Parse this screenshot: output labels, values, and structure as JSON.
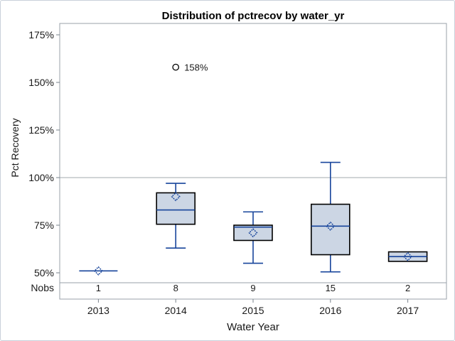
{
  "chart_data": {
    "type": "boxplot",
    "title": "Distribution of pctrecov by water_yr",
    "xlabel": "Water Year",
    "ylabel": "Pct Recovery",
    "nobs_label": "Nobs",
    "y_ticks": [
      175,
      150,
      125,
      100,
      75,
      50
    ],
    "y_tick_suffix": "%",
    "ylim": [
      45,
      181
    ],
    "reference_line": 100,
    "grid": "off",
    "legend": "none",
    "categories": [
      "2013",
      "2014",
      "2015",
      "2016",
      "2017"
    ],
    "nobs": [
      "1",
      "8",
      "9",
      "15",
      "2"
    ],
    "series": [
      {
        "category": "2013",
        "nobs": 1,
        "min": 51,
        "q1": 51,
        "median": 51,
        "q3": 51,
        "max": 51,
        "mean": 51,
        "outliers": []
      },
      {
        "category": "2014",
        "nobs": 8,
        "min": 63,
        "q1": 75.5,
        "median": 83,
        "q3": 92,
        "max": 97,
        "mean": 90,
        "outliers": [
          158
        ]
      },
      {
        "category": "2015",
        "nobs": 9,
        "min": 55,
        "q1": 67,
        "median": 74,
        "q3": 75,
        "max": 82,
        "mean": 71,
        "outliers": []
      },
      {
        "category": "2016",
        "nobs": 15,
        "min": 50.5,
        "q1": 59.5,
        "median": 74.5,
        "q3": 86,
        "max": 108,
        "mean": 74.5,
        "outliers": []
      },
      {
        "category": "2017",
        "nobs": 2,
        "min": 56,
        "q1": 56,
        "median": 58.5,
        "q3": 61,
        "max": 61,
        "mean": 58.5,
        "outliers": []
      }
    ]
  },
  "colors": {
    "box_fill": "#ccd6e4",
    "box_border": "#000000",
    "line_blue": "#17449b",
    "reference_line": "#a3a9ae",
    "frame_border": "#9aa2aa",
    "axis_tick": "#7a838c",
    "text": "#1a1a1a",
    "outer_border": "#c9d0da"
  }
}
